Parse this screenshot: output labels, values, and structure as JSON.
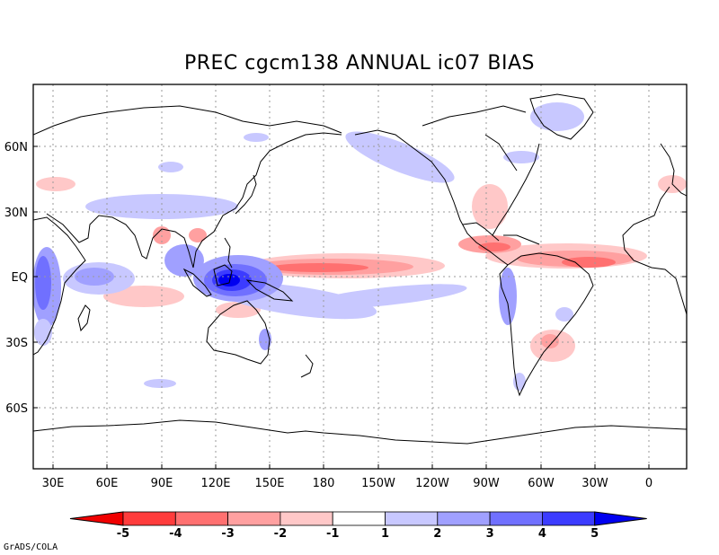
{
  "title": "PREC cgcm138 ANNUAL ic07 BIAS",
  "credit": "GrADS/COLA",
  "axes": {
    "x_ticks": [
      "30E",
      "60E",
      "90E",
      "120E",
      "150E",
      "180",
      "150W",
      "120W",
      "90W",
      "60W",
      "30W",
      "0"
    ],
    "y_ticks": [
      "60N",
      "30N",
      "EQ",
      "30S",
      "60S"
    ],
    "lon_range": [
      20,
      380
    ],
    "lat_range": [
      -90,
      90
    ],
    "grid": "dotted"
  },
  "colorbar": {
    "labels": [
      "-5",
      "-4",
      "-3",
      "-2",
      "-1",
      "1",
      "2",
      "3",
      "4",
      "5"
    ],
    "colors": [
      "#f00000",
      "#ff3c3c",
      "#ff7070",
      "#ffa0a0",
      "#ffc8c8",
      "#ffffff",
      "#c8c8ff",
      "#a0a0ff",
      "#7070ff",
      "#3c3cff",
      "#0000f0"
    ]
  },
  "colors": {
    "wet": [
      "#c8c8ff",
      "#a0a0ff",
      "#7070ff",
      "#3c3cff",
      "#0000f0"
    ],
    "dry": [
      "#ffc8c8",
      "#ffa0a0",
      "#ff7070",
      "#ff3c3c",
      "#f00000"
    ]
  }
}
